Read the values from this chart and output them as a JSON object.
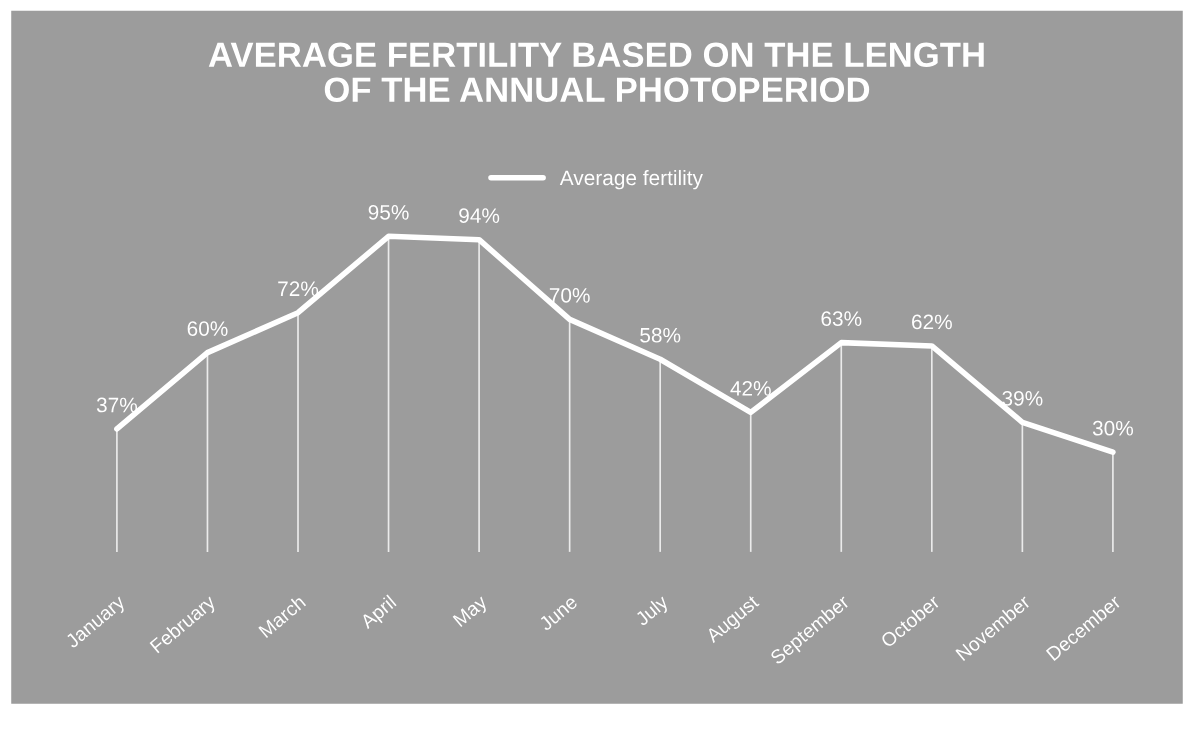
{
  "chart_data": {
    "type": "line",
    "title": "AVERAGE FERTILITY BASED ON THE LENGTH\nOF THE ANNUAL PHOTOPERIOD",
    "categories": [
      "January",
      "February",
      "March",
      "April",
      "May",
      "June",
      "July",
      "August",
      "September",
      "October",
      "November",
      "December"
    ],
    "series": [
      {
        "name": "Average fertility",
        "color": "#ffffff",
        "values": [
          37,
          60,
          72,
          95,
          94,
          70,
          58,
          42,
          63,
          62,
          39,
          30
        ],
        "value_labels": [
          "37%",
          "60%",
          "72%",
          "95%",
          "94%",
          "70%",
          "58%",
          "42%",
          "63%",
          "62%",
          "39%",
          "30%"
        ]
      }
    ],
    "legend": "top",
    "grid": "x",
    "line_style": "solid"
  }
}
